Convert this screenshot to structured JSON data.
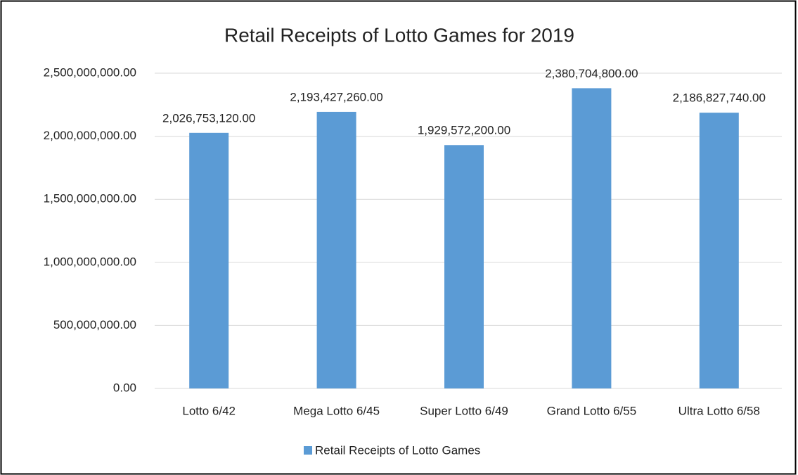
{
  "chart_data": {
    "type": "bar",
    "title": "Retail Receipts of Lotto Games for 2019",
    "categories": [
      "Lotto 6/42",
      "Mega Lotto 6/45",
      "Super Lotto 6/49",
      "Grand Lotto 6/55",
      "Ultra Lotto 6/58"
    ],
    "series": [
      {
        "name": "Retail Receipts of Lotto Games",
        "color": "#5b9bd5",
        "values": [
          2026753120,
          2193427260,
          1929572200,
          2380704800,
          2186827740
        ],
        "value_labels": [
          "2,026,753,120.00",
          "2,193,427,260.00",
          "1,929,572,200.00",
          "2,380,704,800.00",
          "2,186,827,740.00"
        ]
      }
    ],
    "ylim": [
      0,
      2500000000
    ],
    "yticks": [
      {
        "value": 0,
        "label": "0.00"
      },
      {
        "value": 500000000,
        "label": "500,000,000.00"
      },
      {
        "value": 1000000000,
        "label": "1,000,000,000.00"
      },
      {
        "value": 1500000000,
        "label": "1,500,000,000.00"
      },
      {
        "value": 2000000000,
        "label": "2,000,000,000.00"
      },
      {
        "value": 2500000000,
        "label": "2,500,000,000.00"
      }
    ],
    "grid": true,
    "legend": "bottom"
  }
}
